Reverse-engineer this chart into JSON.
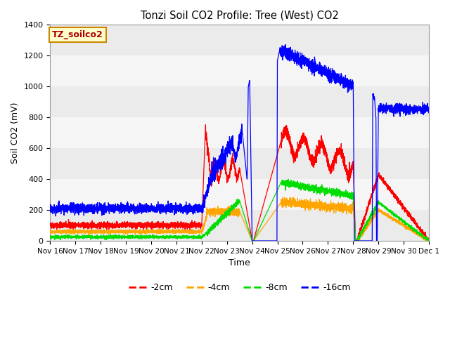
{
  "title": "Tonzi Soil CO2 Profile: Tree (West) CO2",
  "xlabel": "Time",
  "ylabel": "Soil CO2 (mV)",
  "ylim": [
    0,
    1400
  ],
  "box_label": "TZ_soilco2",
  "legend_labels": [
    "-2cm",
    "-4cm",
    "-8cm",
    "-16cm"
  ],
  "line_colors": [
    "#ff0000",
    "#ffa500",
    "#00dd00",
    "#0000ff"
  ],
  "bg_color": "#ffffff",
  "figsize": [
    6.4,
    4.8
  ],
  "dpi": 100,
  "x_tick_labels": [
    "Nov 16",
    "Nov 17",
    "Nov 18",
    "Nov 19",
    "Nov 20",
    "Nov 21",
    "Nov 22",
    "Nov 23",
    "Nov 24",
    "Nov 25",
    "Nov 26",
    "Nov 27",
    "Nov 28",
    "Nov 29",
    "Nov 30",
    "Dec 1"
  ],
  "band_colors": [
    "#ebebeb",
    "#f5f5f5"
  ],
  "band_values": [
    0,
    200,
    400,
    600,
    800,
    1000,
    1200,
    1400
  ]
}
